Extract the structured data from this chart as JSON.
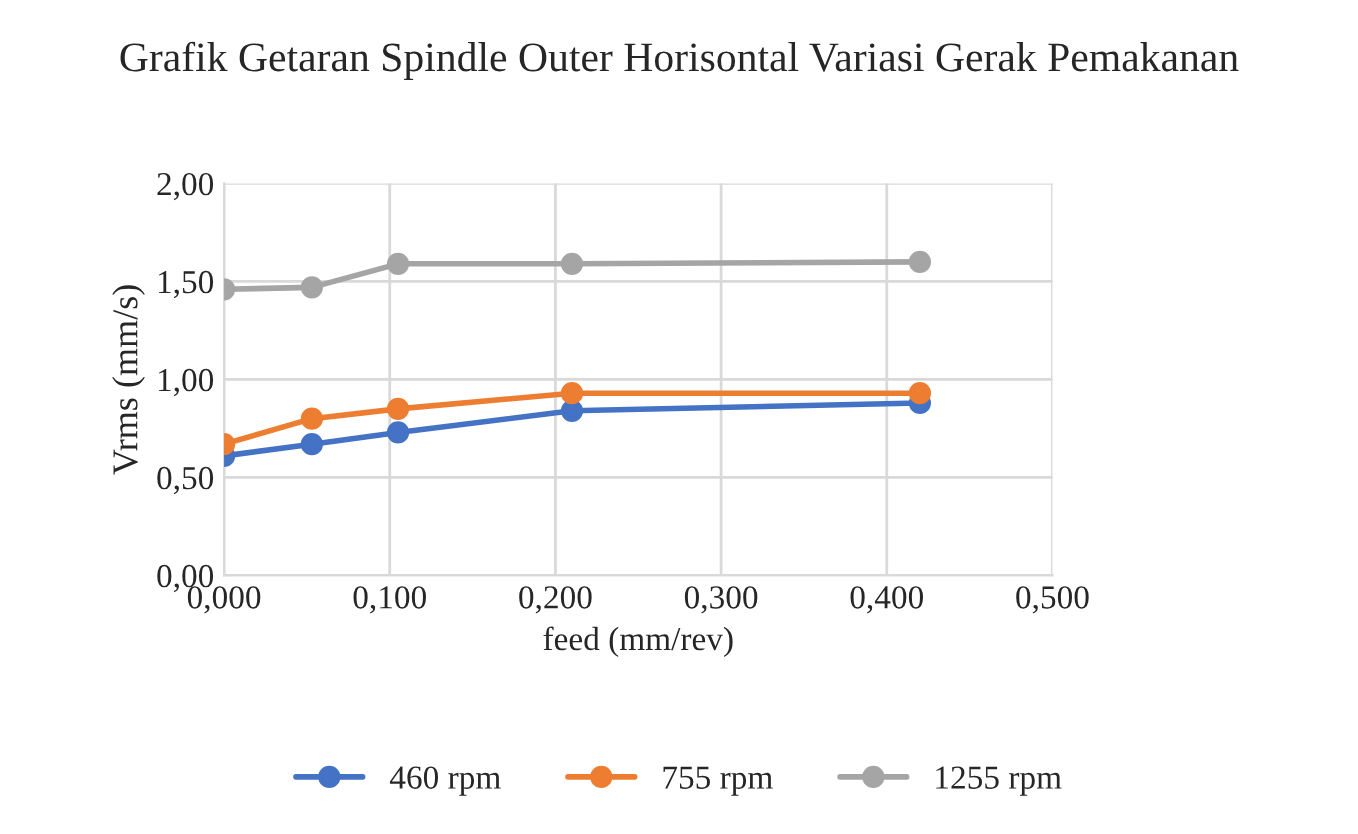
{
  "chart_data": {
    "type": "line",
    "title": "Grafik Getaran Spindle Outer Horisontal Variasi Gerak Pemakanan",
    "xlabel": "feed (mm/rev)",
    "ylabel": "Vrms (mm/s)",
    "x": [
      0,
      0.053,
      0.105,
      0.21,
      0.42
    ],
    "series": [
      {
        "name": "460 rpm",
        "color": "#4472c4",
        "values": [
          0.61,
          0.67,
          0.73,
          0.84,
          0.88
        ]
      },
      {
        "name": "755 rpm",
        "color": "#ed7d31",
        "values": [
          0.67,
          0.8,
          0.85,
          0.93,
          0.93
        ]
      },
      {
        "name": "1255 rpm",
        "color": "#a5a5a5",
        "values": [
          1.46,
          1.47,
          1.59,
          1.59,
          1.6
        ]
      }
    ],
    "xlim": [
      0,
      0.5
    ],
    "xticks": [
      {
        "value": 0,
        "label": "0,000"
      },
      {
        "value": 0.1,
        "label": "0,100"
      },
      {
        "value": 0.2,
        "label": "0,200"
      },
      {
        "value": 0.3,
        "label": "0,300"
      },
      {
        "value": 0.4,
        "label": "0,400"
      },
      {
        "value": 0.5,
        "label": "0,500"
      }
    ],
    "ylim": [
      0,
      2
    ],
    "yticks": [
      {
        "value": 0,
        "label": "0,00"
      },
      {
        "value": 0.5,
        "label": "0,50"
      },
      {
        "value": 1,
        "label": "1,00"
      },
      {
        "value": 1.5,
        "label": "1,50"
      },
      {
        "value": 2,
        "label": "2,00"
      }
    ],
    "grid": true,
    "legend": "bottom",
    "marker": "circle",
    "line_style": "solid"
  }
}
